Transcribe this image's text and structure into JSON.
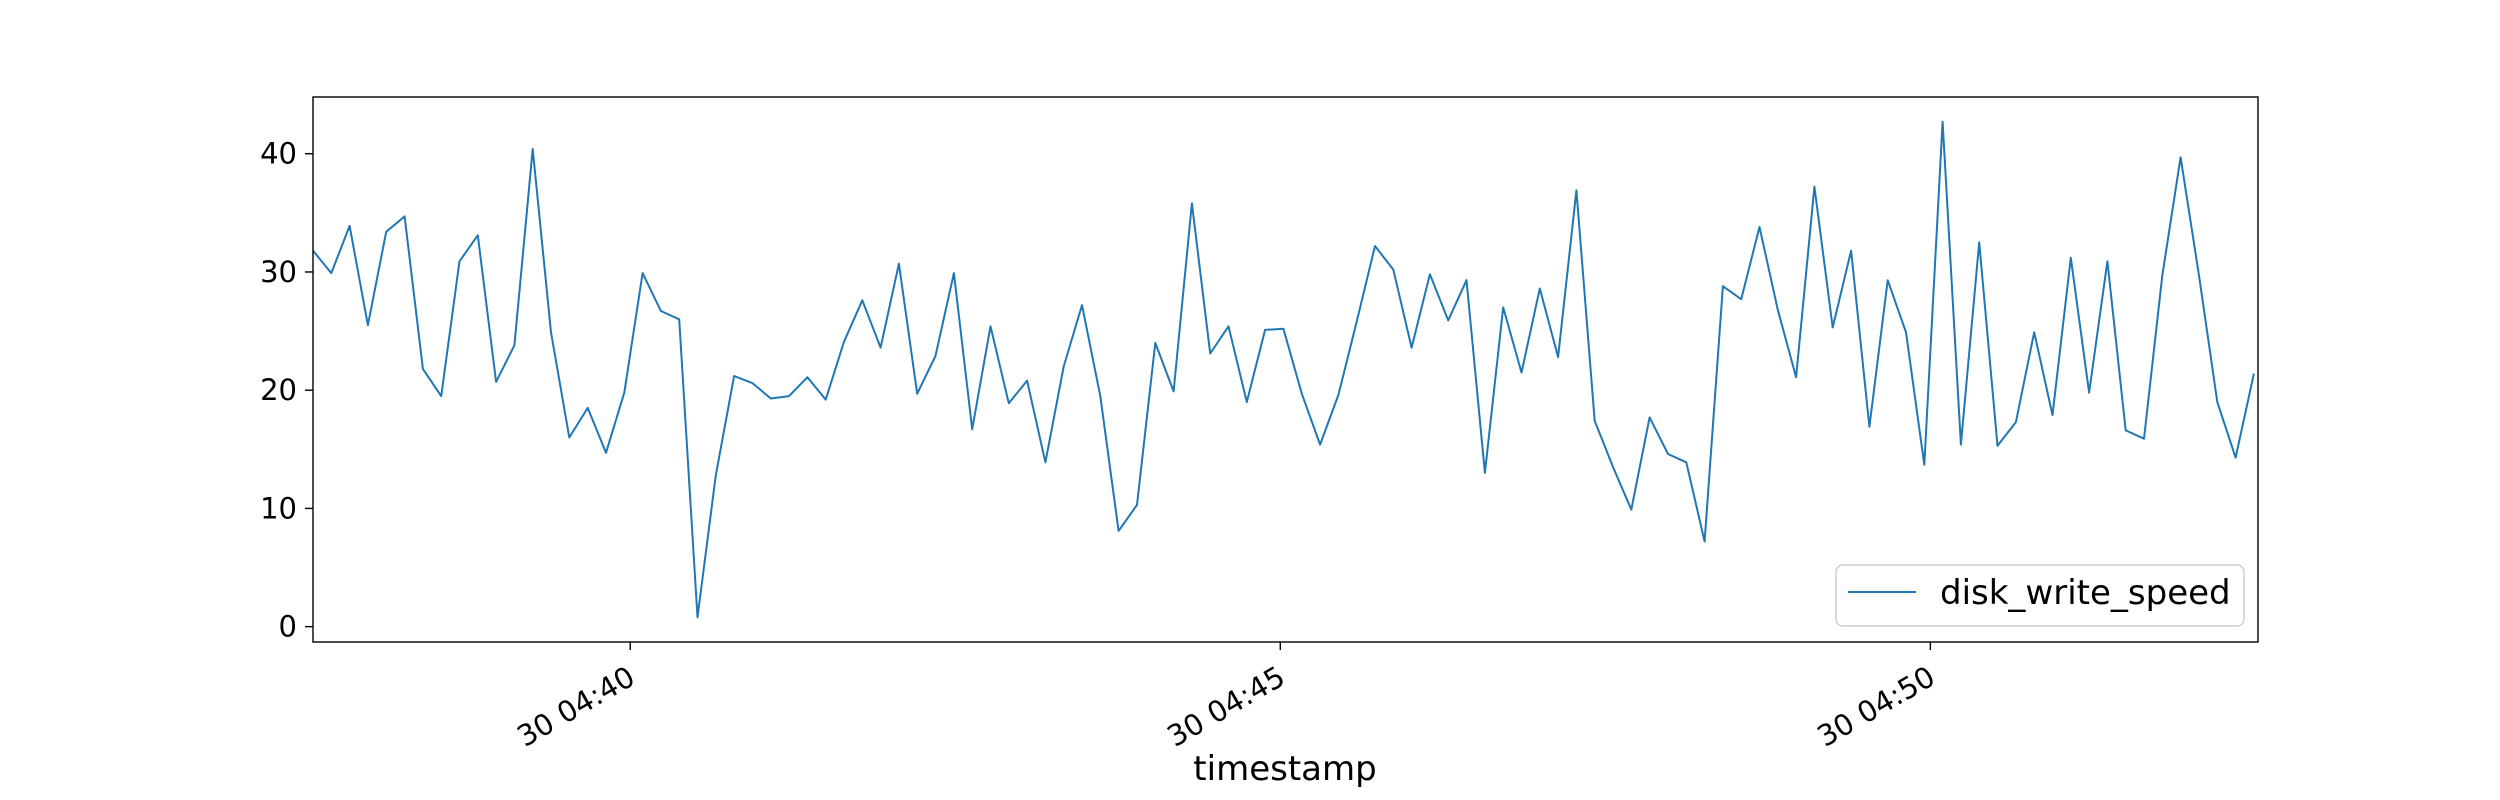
{
  "chart_data": {
    "type": "line",
    "xlabel": "timestamp",
    "ylabel": "",
    "x_tick_labels": [
      "30 04:40",
      "30 04:45",
      "30 04:50"
    ],
    "x_ticks_minutes": [
      40,
      45,
      50
    ],
    "xlim_minutes": [
      37.56,
      52.52
    ],
    "sample_interval_seconds": 8.45,
    "ylim": [
      -1.3,
      44.8
    ],
    "yticks": [
      0,
      10,
      20,
      30,
      40
    ],
    "grid": false,
    "legend_position": "lower-right",
    "series": [
      {
        "name": "disk_write_speed",
        "color": "#1f77b4",
        "values": [
          31.8,
          29.9,
          33.9,
          25.5,
          33.4,
          34.7,
          21.8,
          19.5,
          30.9,
          33.1,
          20.7,
          23.8,
          40.4,
          24.9,
          16.0,
          18.5,
          14.7,
          19.8,
          29.9,
          26.7,
          26.0,
          0.8,
          12.8,
          21.2,
          20.6,
          19.3,
          19.5,
          21.1,
          19.2,
          24.1,
          27.6,
          23.6,
          30.7,
          19.7,
          22.9,
          29.9,
          16.7,
          25.4,
          18.9,
          20.8,
          13.9,
          22.0,
          27.2,
          19.5,
          8.1,
          10.3,
          24.0,
          19.9,
          35.8,
          23.1,
          25.4,
          19.0,
          25.1,
          25.2,
          19.7,
          15.4,
          19.6,
          25.8,
          32.2,
          30.2,
          23.6,
          29.8,
          25.9,
          29.3,
          13.0,
          27.0,
          21.5,
          28.6,
          22.8,
          36.9,
          17.4,
          13.5,
          9.9,
          17.7,
          14.6,
          13.9,
          7.2,
          28.8,
          27.7,
          33.8,
          26.8,
          21.1,
          37.2,
          25.3,
          31.8,
          16.9,
          29.3,
          24.9,
          13.7,
          42.7,
          15.4,
          32.5,
          15.3,
          17.3,
          24.9,
          17.9,
          31.2,
          19.8,
          30.9,
          16.6,
          15.9,
          29.7,
          39.7,
          29.7,
          19.0,
          14.3,
          21.4
        ]
      }
    ]
  }
}
